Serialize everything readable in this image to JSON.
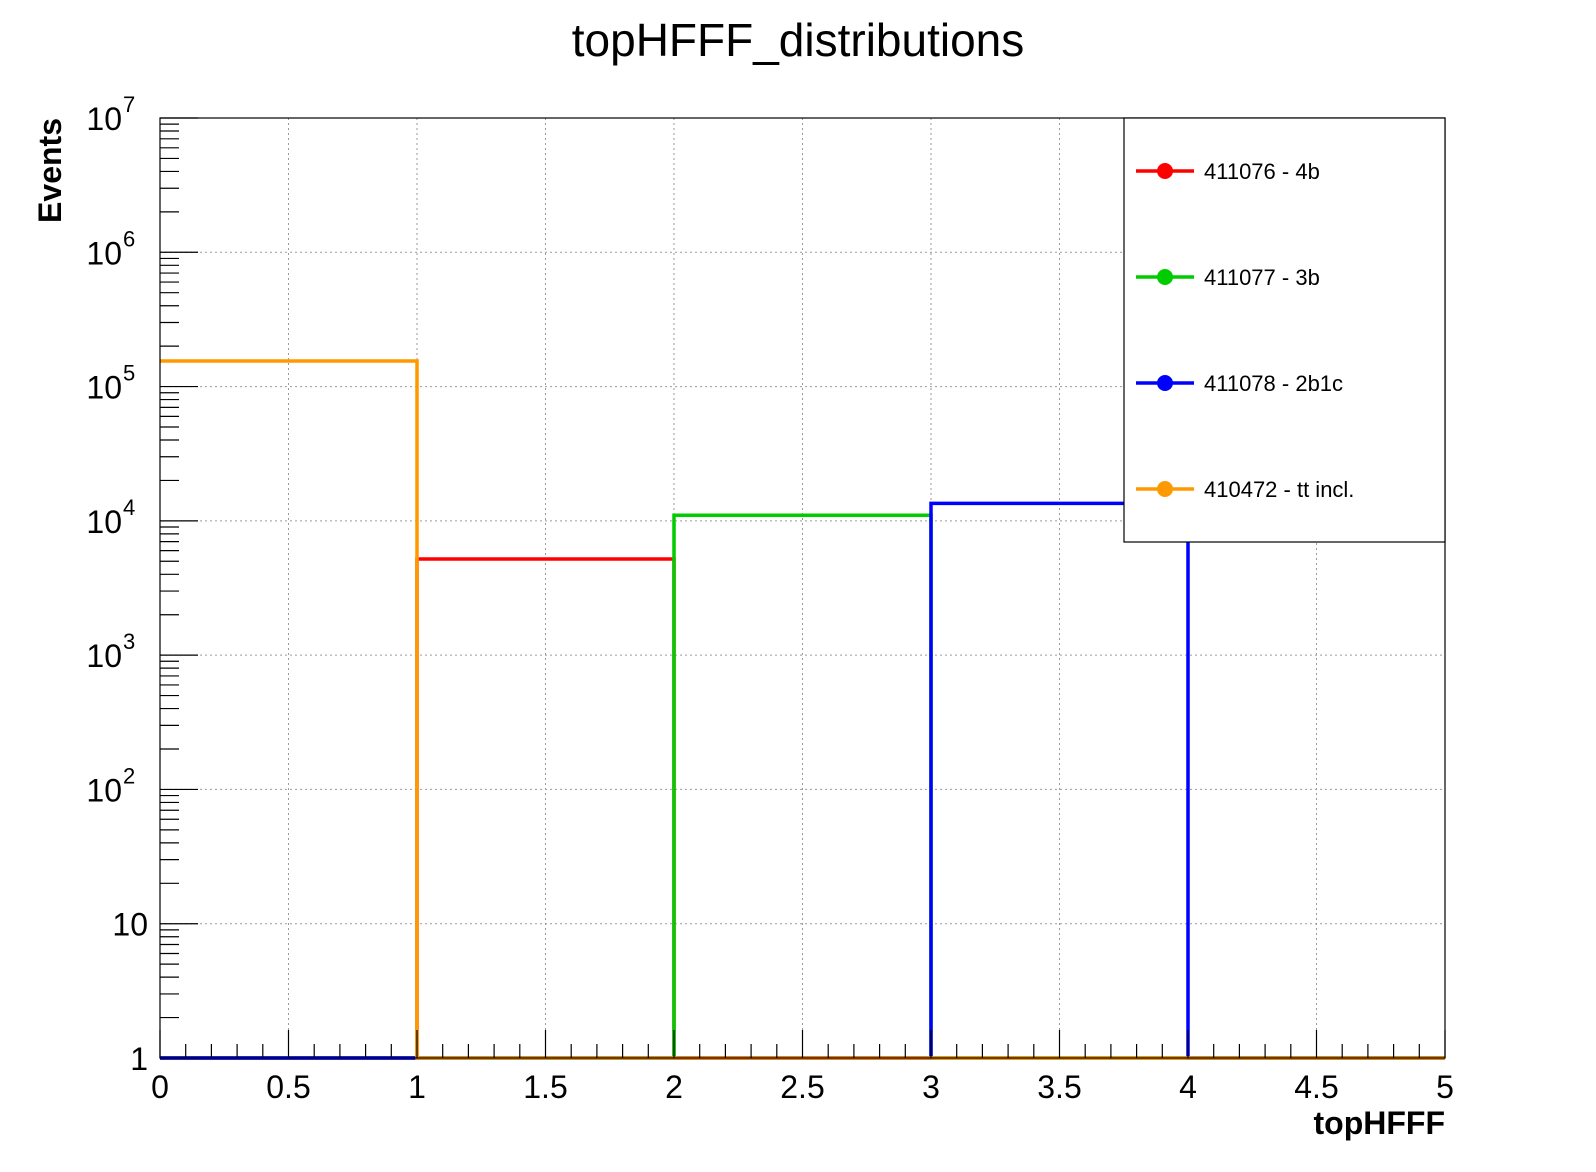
{
  "chart_data": {
    "type": "line",
    "title": "topHFFF_distributions",
    "xlabel": "topHFFF",
    "ylabel": "Events",
    "xlim": [
      0,
      5
    ],
    "ylim": [
      1,
      10000000
    ],
    "y_scale": "log",
    "grid": true,
    "legend_position": "top-right",
    "x_ticks": [
      "0",
      "0.5",
      "1",
      "1.5",
      "2",
      "2.5",
      "3",
      "3.5",
      "4",
      "4.5",
      "5"
    ],
    "y_ticks": [
      {
        "base": "1",
        "exp": "",
        "value": 1
      },
      {
        "base": "10",
        "exp": "",
        "value": 10
      },
      {
        "base": "10",
        "exp": "2",
        "value": 100
      },
      {
        "base": "10",
        "exp": "3",
        "value": 1000
      },
      {
        "base": "10",
        "exp": "4",
        "value": 10000
      },
      {
        "base": "10",
        "exp": "5",
        "value": 100000
      },
      {
        "base": "10",
        "exp": "6",
        "value": 1000000
      },
      {
        "base": "10",
        "exp": "7",
        "value": 10000000
      }
    ],
    "bin_edges": [
      0,
      1,
      2,
      3,
      4,
      5
    ],
    "series": [
      {
        "name": "411076 - 4b",
        "color": "#ff0000",
        "values": [
          1,
          5200,
          1,
          1,
          1
        ]
      },
      {
        "name": "411077 - 3b",
        "color": "#00cc00",
        "values": [
          1,
          1,
          11000,
          1,
          1
        ]
      },
      {
        "name": "411078 - 2b1c",
        "color": "#0000ff",
        "values": [
          1,
          1,
          1,
          13500,
          1
        ]
      },
      {
        "name": "410472 - tt incl.",
        "color": "#ff9900",
        "values": [
          155000,
          1,
          1,
          1,
          1
        ]
      }
    ]
  }
}
